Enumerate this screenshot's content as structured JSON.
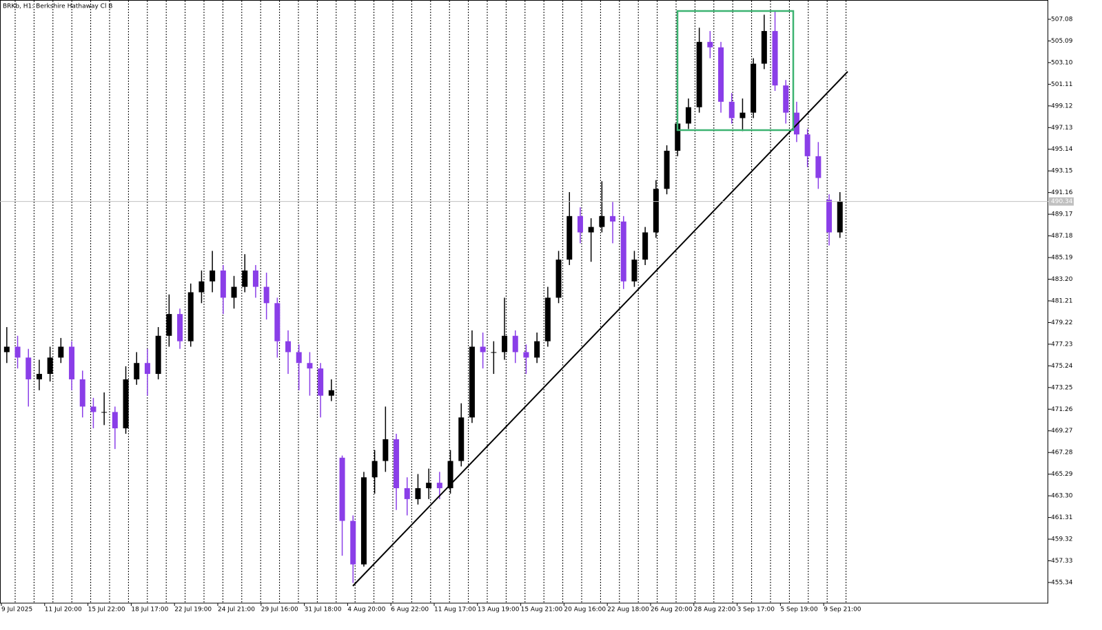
{
  "chart_data": {
    "type": "candlestick",
    "title": "BRKb, H1: Berkshire Hathaway Cl B",
    "categories": [
      "9 Jul 2025",
      null,
      null,
      null,
      "11 Jul 20:00",
      null,
      null,
      null,
      "15 Jul 22:00",
      null,
      null,
      null,
      "18 Jul 17:00",
      null,
      null,
      null,
      "22 Jul 19:00",
      null,
      null,
      null,
      "24 Jul 21:00",
      null,
      null,
      null,
      "29 Jul 16:00",
      null,
      null,
      null,
      "31 Jul 18:00",
      null,
      null,
      null,
      "4 Aug 20:00",
      null,
      null,
      null,
      "6 Aug 22:00",
      null,
      null,
      null,
      "11 Aug 17:00",
      null,
      null,
      null,
      "13 Aug 19:00",
      null,
      null,
      null,
      "15 Aug 21:00",
      null,
      null,
      null,
      "20 Aug 16:00",
      null,
      null,
      null,
      "22 Aug 18:00",
      null,
      null,
      null,
      "26 Aug 20:00",
      null,
      null,
      null,
      "28 Aug 22:00",
      null,
      null,
      null,
      "3 Sep 17:00",
      null,
      null,
      null,
      "5 Sep 19:00",
      null,
      null,
      null,
      "9 Sep 21:00",
      null
    ],
    "open": [
      476.5,
      477,
      476,
      474,
      474.5,
      476,
      477,
      474,
      471.5,
      471,
      471,
      469.5,
      474,
      475.5,
      474.5,
      478,
      480,
      477.5,
      482,
      483,
      484,
      481.5,
      482.5,
      484,
      482.5,
      481,
      477.5,
      476.5,
      475.5,
      475,
      472.5,
      466.8,
      461,
      457,
      465,
      466.5,
      468.5,
      464,
      463,
      464,
      464.5,
      464,
      466.5,
      470.5,
      477,
      476.5,
      476.5,
      478,
      476.5,
      476,
      477.5,
      481.5,
      485,
      489,
      487.5,
      488,
      489,
      488.5,
      483,
      485,
      487.5,
      491.5,
      495,
      497.5,
      499,
      505,
      504.5,
      499.5,
      498,
      498.5,
      503,
      506,
      501,
      498.5,
      496.5,
      494.5,
      490.5,
      487.5
    ],
    "high": [
      478.8,
      478,
      476.8,
      475.8,
      477,
      477.8,
      477.5,
      474.8,
      472.3,
      472.8,
      471.5,
      475.2,
      476.5,
      476.8,
      478.8,
      481.8,
      480.5,
      482.8,
      484,
      485.8,
      484.5,
      483.5,
      485.5,
      484.5,
      483.8,
      481.5,
      478.5,
      477.2,
      476.5,
      475.5,
      474,
      467,
      461.5,
      465.5,
      467.5,
      471.5,
      469,
      465,
      465.3,
      465.8,
      465.5,
      467.5,
      471.8,
      478.5,
      478.3,
      477.5,
      481.5,
      478.5,
      477.2,
      478.3,
      482.5,
      485.8,
      491.2,
      489.8,
      488.8,
      492.2,
      490.3,
      489,
      485.8,
      488,
      492.3,
      495.5,
      498,
      499.8,
      506.3,
      506,
      505,
      500.3,
      499.8,
      503.5,
      507.5,
      507.8,
      501.5,
      499.5,
      497,
      495.8,
      491,
      491.2
    ],
    "low": [
      475.5,
      475,
      471.5,
      473,
      473.8,
      475.5,
      473,
      470.5,
      469.5,
      469.8,
      467.6,
      469,
      473.5,
      472.5,
      474,
      477,
      476.8,
      477,
      481,
      482,
      480,
      480.5,
      482,
      481.5,
      479.5,
      476,
      474.5,
      473,
      472.5,
      470.5,
      472,
      457.8,
      455.3,
      456.8,
      463.5,
      465.5,
      462,
      461.5,
      462.5,
      463,
      463,
      463.5,
      466,
      470,
      475,
      474.5,
      475.8,
      475.5,
      474.5,
      475.5,
      477,
      481,
      484.5,
      486.5,
      484.8,
      487.5,
      486.5,
      482.3,
      482.5,
      484.5,
      487,
      491,
      494.5,
      497,
      498.5,
      503.5,
      498.5,
      497.5,
      496.8,
      498,
      502.5,
      500.5,
      497.5,
      495.8,
      493.5,
      491.5,
      486.3,
      487
    ],
    "close": [
      477,
      476,
      474,
      474.5,
      476,
      477,
      474,
      471.5,
      471,
      471,
      469.5,
      474,
      475.5,
      474.5,
      478,
      480,
      477.5,
      482,
      483,
      484,
      481.5,
      482.5,
      484,
      482.5,
      481,
      477.5,
      476.5,
      475.5,
      475,
      472.5,
      473,
      461,
      457,
      465,
      466.5,
      468.5,
      464,
      463,
      464,
      464.5,
      464,
      466.5,
      470.5,
      477,
      476.5,
      476.5,
      478,
      476.5,
      476,
      477.5,
      481.5,
      485,
      489,
      487.5,
      488,
      489,
      488.5,
      483,
      485,
      487.5,
      491.5,
      495,
      497.5,
      499,
      505,
      504.5,
      499.5,
      498,
      498.5,
      503,
      506,
      501,
      498.5,
      496.5,
      494.5,
      492.5,
      487.5,
      490.34
    ],
    "up_color": "#000000",
    "down_color": "#8a3ee8",
    "last_price": 490.34,
    "ylim": [
      453.44,
      508.85
    ],
    "yticks": [
      507.08,
      505.09,
      {
        "value": 503.1,
        "label": "503.10"
      },
      501.11,
      499.12,
      497.13,
      495.14,
      493.15,
      491.16,
      489.17,
      487.18,
      485.19,
      {
        "value": 483.2,
        "label": "483.20"
      },
      481.21,
      479.22,
      477.23,
      475.24,
      473.25,
      471.26,
      469.27,
      467.28,
      465.29,
      {
        "value": 463.3,
        "label": "463.30"
      },
      461.31,
      459.32,
      457.33,
      455.34
    ]
  }
}
